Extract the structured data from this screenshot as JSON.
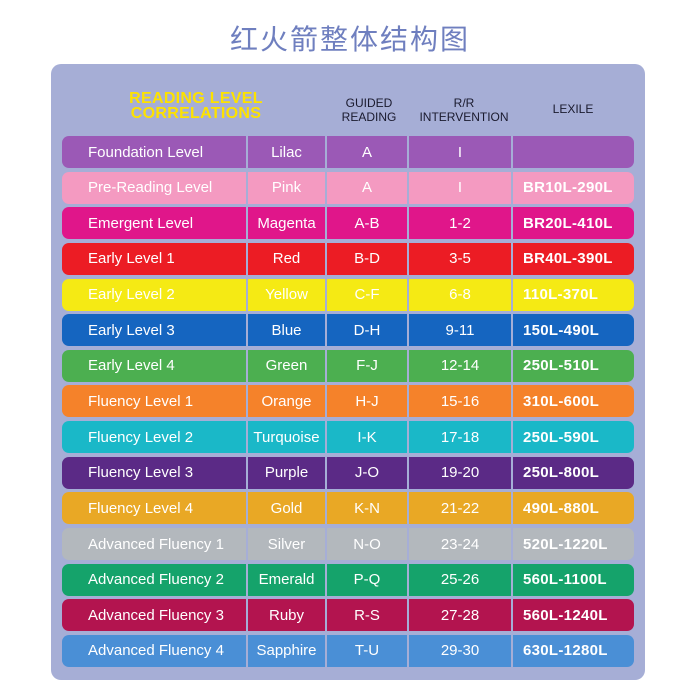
{
  "page": {
    "title": "红火箭整体结构图"
  },
  "header": {
    "main_line1": "READING LEVEL",
    "main_line2": "CORRELATIONS",
    "guided_line1": "GUIDED",
    "guided_line2": "READING",
    "rr_line1": "R/R",
    "rr_line2": "INTERVENTION",
    "lexile": "LEXILE"
  },
  "rows": [
    {
      "level": "Foundation Level",
      "color": "Lilac",
      "guided": "A",
      "rr": "I",
      "lexile": "",
      "bg": "#9b59b6"
    },
    {
      "level": "Pre-Reading Level",
      "color": "Pink",
      "guided": "A",
      "rr": "I",
      "lexile": "BR10L-290L",
      "bg": "#f49ac1"
    },
    {
      "level": "Emergent Level",
      "color": "Magenta",
      "guided": "A-B",
      "rr": "1-2",
      "lexile": "BR20L-410L",
      "bg": "#e0168a"
    },
    {
      "level": "Early Level 1",
      "color": "Red",
      "guided": "B-D",
      "rr": "3-5",
      "lexile": "BR40L-390L",
      "bg": "#ec1c24"
    },
    {
      "level": "Early Level 2",
      "color": "Yellow",
      "guided": "C-F",
      "rr": "6-8",
      "lexile": "110L-370L",
      "bg": "#f5ea14"
    },
    {
      "level": "Early Level 3",
      "color": "Blue",
      "guided": "D-H",
      "rr": "9-11",
      "lexile": "150L-490L",
      "bg": "#1565c0"
    },
    {
      "level": "Early Level 4",
      "color": "Green",
      "guided": "F-J",
      "rr": "12-14",
      "lexile": "250L-510L",
      "bg": "#4caf50"
    },
    {
      "level": "Fluency Level 1",
      "color": "Orange",
      "guided": "H-J",
      "rr": "15-16",
      "lexile": "310L-600L",
      "bg": "#f5822a"
    },
    {
      "level": "Fluency Level 2",
      "color": "Turquoise",
      "guided": "I-K",
      "rr": "17-18",
      "lexile": "250L-590L",
      "bg": "#1ab8c8"
    },
    {
      "level": "Fluency Level 3",
      "color": "Purple",
      "guided": "J-O",
      "rr": "19-20",
      "lexile": "250L-800L",
      "bg": "#5b2a86"
    },
    {
      "level": "Fluency Level 4",
      "color": "Gold",
      "guided": "K-N",
      "rr": "21-22",
      "lexile": "490L-880L",
      "bg": "#e9a825"
    },
    {
      "level": "Advanced Fluency 1",
      "color": "Silver",
      "guided": "N-O",
      "rr": "23-24",
      "lexile": "520L-1220L",
      "bg": "#b3b8bd"
    },
    {
      "level": "Advanced Fluency 2",
      "color": "Emerald",
      "guided": "P-Q",
      "rr": "25-26",
      "lexile": "560L-1100L",
      "bg": "#15a36b"
    },
    {
      "level": "Advanced Fluency 3",
      "color": "Ruby",
      "guided": "R-S",
      "rr": "27-28",
      "lexile": "560L-1240L",
      "bg": "#b3144f"
    },
    {
      "level": "Advanced Fluency 4",
      "color": "Sapphire",
      "guided": "T-U",
      "rr": "29-30",
      "lexile": "630L-1280L",
      "bg": "#4a8fd6"
    }
  ]
}
